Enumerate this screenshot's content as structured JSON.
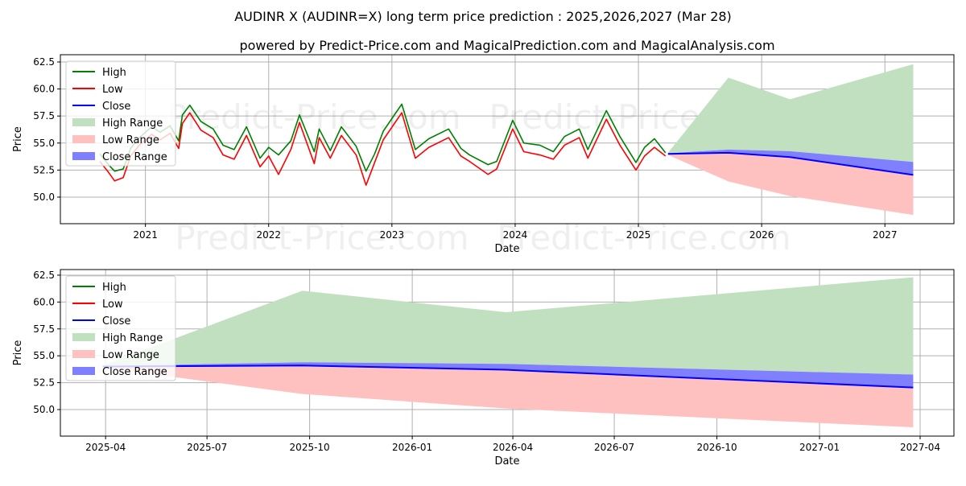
{
  "title": "AUDINR X (AUDINR=X) long term price prediction : 2025,2026,2027 (Mar 28)",
  "subtitle": "powered by Predict-Price.com and MagicalPrediction.com and MagicalAnalysis.com",
  "watermark": "Predict-Price.com",
  "colors": {
    "high": "#008000",
    "low": "#ff0000",
    "close": "#0000ff",
    "high_range": "#c0e0c0",
    "low_range": "#ffc0c0",
    "close_range": "#8080ff"
  },
  "legend": [
    "High",
    "Low",
    "Close",
    "High Range",
    "Low Range",
    "Close Range"
  ],
  "chart_data": [
    {
      "type": "line",
      "title": "",
      "xlabel": "Date",
      "ylabel": "Price",
      "xlim": [
        2020.31,
        2027.56
      ],
      "ylim": [
        47.54,
        63.17
      ],
      "grid": true,
      "legend_position": "top-left",
      "yticks": [
        50.0,
        52.5,
        55.0,
        57.5,
        60.0,
        62.5
      ],
      "ytick_labels": [
        "50.0",
        "52.5",
        "55.0",
        "57.5",
        "60.0",
        "62.5"
      ],
      "xticks": [
        2021,
        2022,
        2023,
        2024,
        2025,
        2026,
        2027
      ],
      "xtick_labels": [
        "2021",
        "2022",
        "2023",
        "2024",
        "2025",
        "2026",
        "2027"
      ],
      "history": {
        "x": [
          2020.63,
          2020.7,
          2020.75,
          2020.82,
          2020.88,
          2020.95,
          2021.05,
          2021.12,
          2021.2,
          2021.27,
          2021.3,
          2021.36,
          2021.45,
          2021.55,
          2021.63,
          2021.72,
          2021.82,
          2021.93,
          2022.0,
          2022.08,
          2022.18,
          2022.25,
          2022.37,
          2022.41,
          2022.5,
          2022.59,
          2022.71,
          2022.79,
          2022.86,
          2022.93,
          2023.08,
          2023.19,
          2023.3,
          2023.46,
          2023.56,
          2023.63,
          2023.78,
          2023.85,
          2023.98,
          2024.07,
          2024.2,
          2024.31,
          2024.4,
          2024.52,
          2024.59,
          2024.74,
          2024.85,
          2024.98,
          2025.05,
          2025.13,
          2025.22
        ],
        "high": [
          54.0,
          53.0,
          52.4,
          52.6,
          54.5,
          55.5,
          56.5,
          56.0,
          56.6,
          55.2,
          57.6,
          58.5,
          57.0,
          56.3,
          54.8,
          54.4,
          56.5,
          53.6,
          54.6,
          53.9,
          55.2,
          57.6,
          54.2,
          56.3,
          54.3,
          56.5,
          54.7,
          52.4,
          54.0,
          56.1,
          58.6,
          54.4,
          55.4,
          56.3,
          54.5,
          53.9,
          53.0,
          53.3,
          57.1,
          55.0,
          54.8,
          54.2,
          55.6,
          56.3,
          54.4,
          58.0,
          55.6,
          53.2,
          54.6,
          55.4,
          54.1
        ],
        "low": [
          53.3,
          52.3,
          51.5,
          51.8,
          53.8,
          54.8,
          55.8,
          55.3,
          55.9,
          54.5,
          56.8,
          57.8,
          56.2,
          55.5,
          53.9,
          53.5,
          55.7,
          52.8,
          53.8,
          52.1,
          54.4,
          56.9,
          53.1,
          55.5,
          53.6,
          55.7,
          53.9,
          51.1,
          53.2,
          55.3,
          57.8,
          53.6,
          54.6,
          55.5,
          53.8,
          53.3,
          52.1,
          52.6,
          56.3,
          54.2,
          53.9,
          53.5,
          54.8,
          55.5,
          53.6,
          57.2,
          54.8,
          52.5,
          53.8,
          54.6,
          53.8
        ]
      },
      "prediction": {
        "x": [
          2025.24,
          2025.73,
          2026.23,
          2027.23
        ],
        "high": [
          54.1,
          61.05,
          59.05,
          62.3
        ],
        "low": [
          53.9,
          51.45,
          50.1,
          48.35
        ],
        "close": [
          54.0,
          54.1,
          53.7,
          52.05
        ],
        "close_upper": [
          54.05,
          54.4,
          54.25,
          53.25
        ]
      }
    },
    {
      "type": "line",
      "title": "",
      "xlabel": "Date",
      "ylabel": "Price",
      "xlim": [
        2025.136,
        2027.33
      ],
      "ylim": [
        47.53,
        63.02
      ],
      "grid": true,
      "legend_position": "top-left",
      "yticks": [
        50.0,
        52.5,
        55.0,
        57.5,
        60.0,
        62.5
      ],
      "ytick_labels": [
        "50.0",
        "52.5",
        "55.0",
        "57.5",
        "60.0",
        "62.5"
      ],
      "xticks": [
        2025.247,
        2025.496,
        2025.748,
        2026.0,
        2026.247,
        2026.496,
        2026.748,
        2027.0,
        2027.247
      ],
      "xtick_labels": [
        "2025-04",
        "2025-07",
        "2025-10",
        "2026-01",
        "2026-04",
        "2026-07",
        "2026-10",
        "2027-01",
        "2027-04"
      ],
      "prediction": {
        "x": [
          2025.24,
          2025.73,
          2026.23,
          2027.23
        ],
        "high": [
          54.1,
          61.05,
          59.05,
          62.3
        ],
        "low": [
          53.9,
          51.45,
          50.1,
          48.35
        ],
        "close": [
          54.0,
          54.1,
          53.7,
          52.05
        ],
        "close_upper": [
          54.05,
          54.4,
          54.25,
          53.25
        ]
      }
    }
  ]
}
